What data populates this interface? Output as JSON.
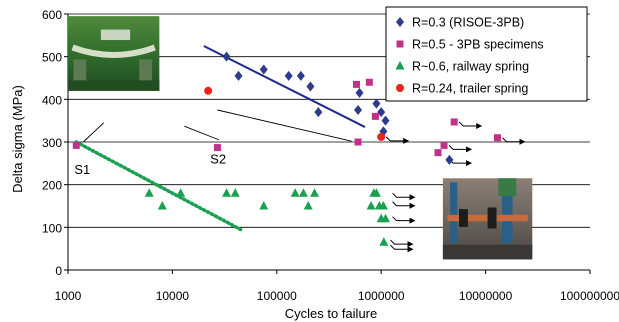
{
  "chart_data": {
    "type": "scatter",
    "xlabel": "Cycles to failure",
    "ylabel": "Delta sigma  (MPa)",
    "xscale": "log",
    "xlim": [
      1000,
      100000000
    ],
    "ylim": [
      0,
      600
    ],
    "x_ticks": [
      {
        "value": 1000,
        "label": "1000"
      },
      {
        "value": 10000,
        "label": "10000"
      },
      {
        "value": 100000,
        "label": "100000"
      },
      {
        "value": 1000000,
        "label": "1000000"
      },
      {
        "value": 10000000,
        "label": "10000000"
      },
      {
        "value": 100000000,
        "label": "100000000"
      }
    ],
    "y_ticks": [
      {
        "value": 0,
        "label": "0"
      },
      {
        "value": 100,
        "label": "100"
      },
      {
        "value": 200,
        "label": "200"
      },
      {
        "value": 300,
        "label": "300"
      },
      {
        "value": 400,
        "label": "400"
      },
      {
        "value": 500,
        "label": "500"
      },
      {
        "value": 600,
        "label": "600"
      }
    ],
    "grid": "horizontal",
    "legend_position": "top-right",
    "series": [
      {
        "name": "R=0.3 (RISOE-3PB)",
        "marker": "diamond",
        "color": "#2e3a8c",
        "points": [
          [
            33000,
            500
          ],
          [
            43000,
            455
          ],
          [
            75000,
            470
          ],
          [
            130000,
            455
          ],
          [
            170000,
            455
          ],
          [
            210000,
            430
          ],
          [
            250000,
            370
          ],
          [
            620000,
            415
          ],
          [
            600000,
            375
          ],
          [
            900000,
            390
          ],
          [
            1000000,
            370
          ],
          [
            1100000,
            350
          ],
          [
            1050000,
            325
          ],
          [
            4500000,
            258
          ]
        ],
        "runouts": []
      },
      {
        "name": "R=0.5 - 3PB specimens",
        "marker": "square",
        "color": "#c0318a",
        "points": [
          [
            1200,
            292
          ],
          [
            27000,
            287
          ],
          [
            580000,
            435
          ],
          [
            770000,
            440
          ],
          [
            880000,
            360
          ],
          [
            600000,
            300
          ],
          [
            3500000,
            275
          ],
          [
            4000000,
            292
          ],
          [
            5000000,
            347
          ],
          [
            13000000,
            310
          ]
        ],
        "runouts": [
          [
            5000000,
            347
          ],
          [
            13000000,
            310
          ],
          [
            4000000,
            292
          ],
          [
            4000000,
            260
          ]
        ]
      },
      {
        "name": "R~0.6, railway spring",
        "marker": "triangle",
        "color": "#19a050",
        "points": [
          [
            6000,
            180
          ],
          [
            8000,
            150
          ],
          [
            12000,
            180
          ],
          [
            33000,
            180
          ],
          [
            40000,
            180
          ],
          [
            75000,
            150
          ],
          [
            150000,
            180
          ],
          [
            180000,
            180
          ],
          [
            200000,
            150
          ],
          [
            230000,
            180
          ],
          [
            800000,
            150
          ],
          [
            850000,
            180
          ],
          [
            900000,
            180
          ],
          [
            960000,
            150
          ],
          [
            1000000,
            120
          ],
          [
            1050000,
            150
          ],
          [
            1100000,
            120
          ],
          [
            1060000,
            65
          ]
        ],
        "runouts": [
          [
            1150000,
            180
          ],
          [
            1150000,
            160
          ],
          [
            1150000,
            125
          ],
          [
            1100000,
            70
          ],
          [
            1100000,
            58
          ]
        ]
      },
      {
        "name": "R=0.24, trailer spring",
        "marker": "circle",
        "color": "#e8241c",
        "points": [
          [
            22000,
            420
          ],
          [
            1000000,
            312
          ]
        ],
        "runouts": [
          [
            1000000,
            312
          ]
        ]
      }
    ],
    "trend_lines": [
      {
        "style": "solid",
        "color": "#1e2a8c",
        "from": [
          20000,
          525
        ],
        "to": [
          700000,
          335
        ]
      },
      {
        "style": "dotted",
        "color": "#19a050",
        "from": [
          1200,
          300
        ],
        "to": [
          45000,
          95
        ]
      }
    ],
    "leader_lines": [
      {
        "from": [
          1400,
          300
        ],
        "to": [
          2200,
          345
        ]
      },
      {
        "from": [
          13000,
          337
        ],
        "to": [
          28000,
          305
        ]
      },
      {
        "from": [
          27000,
          375
        ],
        "to": [
          520000,
          302
        ]
      }
    ],
    "annotations": [
      {
        "text": "S1",
        "x": 1150,
        "y": 225
      },
      {
        "text": "S2",
        "x": 23000,
        "y": 250
      }
    ],
    "photos": [
      {
        "name": "three-point-bending-photo",
        "x_range": [
          1000,
          7500
        ],
        "y_range": [
          420,
          595
        ]
      },
      {
        "name": "railway-spring-test-photo",
        "x_range": [
          3900000,
          28000000
        ],
        "y_range": [
          25,
          215
        ]
      }
    ]
  }
}
